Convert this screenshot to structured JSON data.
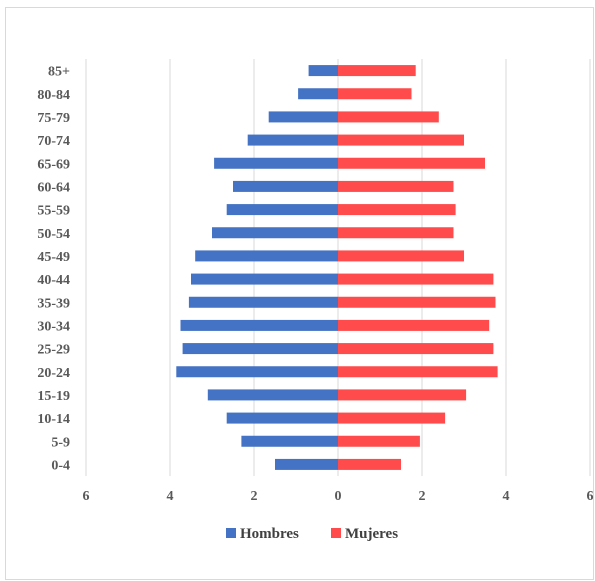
{
  "chart_data": {
    "type": "bar",
    "orientation": "horizontal",
    "title": "",
    "xlabel": "",
    "ylabel": "",
    "categories": [
      "85+",
      "80-84",
      "75-79",
      "70-74",
      "65-69",
      "60-64",
      "55-59",
      "50-54",
      "45-49",
      "40-44",
      "35-39",
      "30-34",
      "25-29",
      "20-24",
      "15-19",
      "10-14",
      "5-9",
      "0-4"
    ],
    "series": [
      {
        "name": "Hombres",
        "color": "#4472c4",
        "values": [
          -0.7,
          -0.95,
          -1.65,
          -2.15,
          -2.95,
          -2.5,
          -2.65,
          -3.0,
          -3.4,
          -3.5,
          -3.55,
          -3.75,
          -3.7,
          -3.85,
          -3.1,
          -2.65,
          -2.3,
          -1.5
        ]
      },
      {
        "name": "Mujeres",
        "color": "#ff4b4b",
        "values": [
          1.85,
          1.75,
          2.4,
          3.0,
          3.5,
          2.75,
          2.8,
          2.75,
          3.0,
          3.7,
          3.75,
          3.6,
          3.7,
          3.8,
          3.05,
          2.55,
          1.95,
          1.5
        ]
      }
    ],
    "xlim": [
      -6,
      6
    ],
    "xticks": [
      -6,
      -4,
      -2,
      0,
      2,
      4,
      6
    ],
    "xtick_labels": [
      "6",
      "4",
      "2",
      "0",
      "2",
      "4",
      "6"
    ],
    "grid": "vertical",
    "legend": "bottom"
  }
}
